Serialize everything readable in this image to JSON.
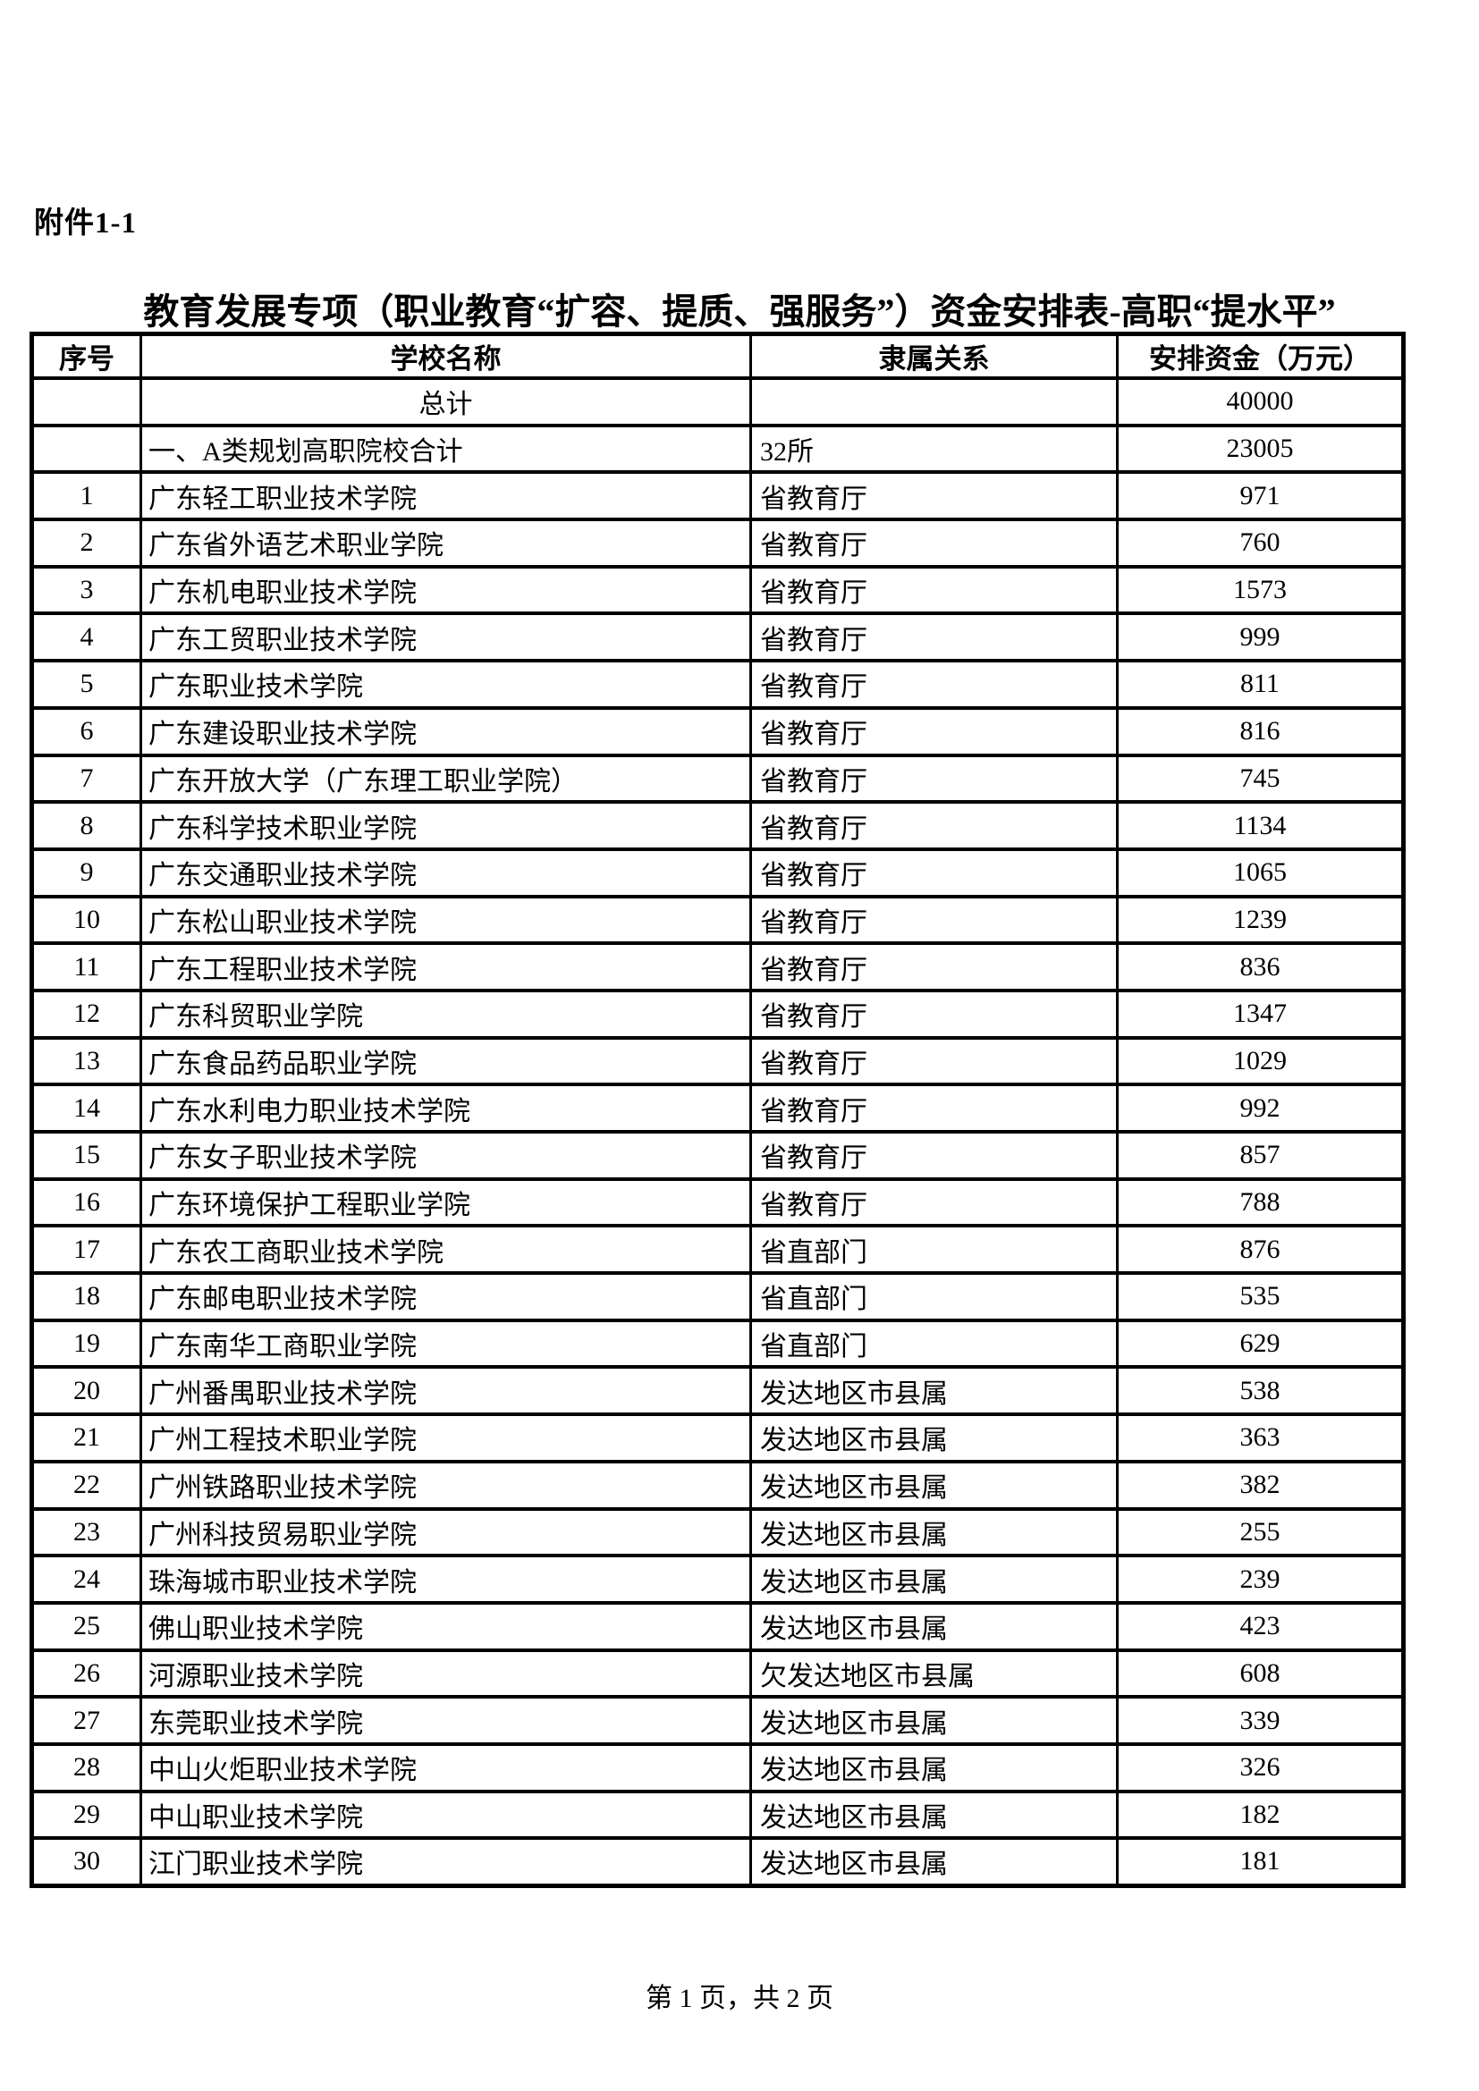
{
  "page": {
    "attachment_label": "附件1-1",
    "title": "教育发展专项（职业教育“扩容、提质、强服务”）资金安排表-高职“提水平”",
    "footer": "第 1 页，共 2 页"
  },
  "table": {
    "headers": [
      "序号",
      "学校名称",
      "隶属关系",
      "安排资金（万元）"
    ],
    "rows": [
      {
        "index": "",
        "name": "总计",
        "affiliation": "",
        "amount": "40000",
        "center_name": true
      },
      {
        "index": "",
        "name": "一、A类规划高职院校合计",
        "affiliation": "32所",
        "amount": "23005"
      },
      {
        "index": "1",
        "name": "广东轻工职业技术学院",
        "affiliation": "省教育厅",
        "amount": "971"
      },
      {
        "index": "2",
        "name": "广东省外语艺术职业学院",
        "affiliation": "省教育厅",
        "amount": "760"
      },
      {
        "index": "3",
        "name": "广东机电职业技术学院",
        "affiliation": "省教育厅",
        "amount": "1573"
      },
      {
        "index": "4",
        "name": "广东工贸职业技术学院",
        "affiliation": "省教育厅",
        "amount": "999"
      },
      {
        "index": "5",
        "name": "广东职业技术学院",
        "affiliation": "省教育厅",
        "amount": "811"
      },
      {
        "index": "6",
        "name": "广东建设职业技术学院",
        "affiliation": "省教育厅",
        "amount": "816"
      },
      {
        "index": "7",
        "name": "广东开放大学（广东理工职业学院）",
        "affiliation": "省教育厅",
        "amount": "745"
      },
      {
        "index": "8",
        "name": "广东科学技术职业学院",
        "affiliation": "省教育厅",
        "amount": "1134"
      },
      {
        "index": "9",
        "name": "广东交通职业技术学院",
        "affiliation": "省教育厅",
        "amount": "1065"
      },
      {
        "index": "10",
        "name": "广东松山职业技术学院",
        "affiliation": "省教育厅",
        "amount": "1239"
      },
      {
        "index": "11",
        "name": "广东工程职业技术学院",
        "affiliation": "省教育厅",
        "amount": "836"
      },
      {
        "index": "12",
        "name": "广东科贸职业学院",
        "affiliation": "省教育厅",
        "amount": "1347"
      },
      {
        "index": "13",
        "name": "广东食品药品职业学院",
        "affiliation": "省教育厅",
        "amount": "1029"
      },
      {
        "index": "14",
        "name": "广东水利电力职业技术学院",
        "affiliation": "省教育厅",
        "amount": "992"
      },
      {
        "index": "15",
        "name": "广东女子职业技术学院",
        "affiliation": "省教育厅",
        "amount": "857"
      },
      {
        "index": "16",
        "name": "广东环境保护工程职业学院",
        "affiliation": "省教育厅",
        "amount": "788"
      },
      {
        "index": "17",
        "name": "广东农工商职业技术学院",
        "affiliation": "省直部门",
        "amount": "876"
      },
      {
        "index": "18",
        "name": "广东邮电职业技术学院",
        "affiliation": "省直部门",
        "amount": "535"
      },
      {
        "index": "19",
        "name": "广东南华工商职业学院",
        "affiliation": "省直部门",
        "amount": "629"
      },
      {
        "index": "20",
        "name": "广州番禺职业技术学院",
        "affiliation": "发达地区市县属",
        "amount": "538"
      },
      {
        "index": "21",
        "name": "广州工程技术职业学院",
        "affiliation": "发达地区市县属",
        "amount": "363"
      },
      {
        "index": "22",
        "name": "广州铁路职业技术学院",
        "affiliation": "发达地区市县属",
        "amount": "382"
      },
      {
        "index": "23",
        "name": "广州科技贸易职业学院",
        "affiliation": "发达地区市县属",
        "amount": "255"
      },
      {
        "index": "24",
        "name": "珠海城市职业技术学院",
        "affiliation": "发达地区市县属",
        "amount": "239"
      },
      {
        "index": "25",
        "name": "佛山职业技术学院",
        "affiliation": "发达地区市县属",
        "amount": "423"
      },
      {
        "index": "26",
        "name": "河源职业技术学院",
        "affiliation": "欠发达地区市县属",
        "amount": "608"
      },
      {
        "index": "27",
        "name": "东莞职业技术学院",
        "affiliation": "发达地区市县属",
        "amount": "339"
      },
      {
        "index": "28",
        "name": "中山火炬职业技术学院",
        "affiliation": "发达地区市县属",
        "amount": "326"
      },
      {
        "index": "29",
        "name": "中山职业技术学院",
        "affiliation": "发达地区市县属",
        "amount": "182"
      },
      {
        "index": "30",
        "name": "江门职业技术学院",
        "affiliation": "发达地区市县属",
        "amount": "181"
      }
    ]
  }
}
